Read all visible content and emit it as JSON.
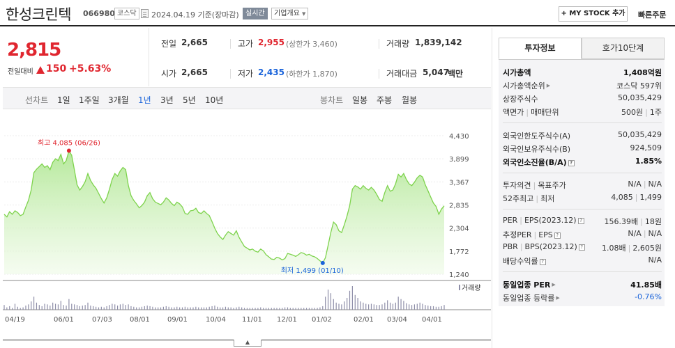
{
  "header": {
    "company_name": "한성크린텍",
    "code": "066980",
    "market_badge": "코스닥",
    "date_text": "2024.04.19 기준(장마감)",
    "live_badge": "실시간",
    "overview_label": "기업개요",
    "mystock_label": "+ MY STOCK 추가",
    "quick_order_label": "빠른주문"
  },
  "price": {
    "current": "2,815",
    "change_label": "전일대비",
    "change_value": "150",
    "change_pct": "+5.63%",
    "direction_color": "#e0262f"
  },
  "stats": {
    "prev_label": "전일",
    "prev_value": "2,665",
    "high_label": "고가",
    "high_value": "2,955",
    "upper_limit": "(상한가 3,460)",
    "volume_label": "거래량",
    "volume_value": "1,839,142",
    "open_label": "시가",
    "open_value": "2,665",
    "low_label": "저가",
    "low_value": "2,435",
    "lower_limit": "(하한가 1,870)",
    "amount_label": "거래대금",
    "amount_value": "5,047",
    "amount_unit": "백만"
  },
  "tabs": {
    "line_label": "선차트",
    "periods": [
      "1일",
      "1주일",
      "3개월",
      "1년",
      "3년",
      "5년",
      "10년"
    ],
    "active_period": "1년",
    "candle_label": "봉차트",
    "candle_periods": [
      "일봉",
      "주봉",
      "월봉"
    ]
  },
  "chart_data": {
    "type": "area",
    "color": "#7ed34d",
    "y_ticks": [
      "4,430",
      "3,899",
      "3,367",
      "2,835",
      "2,304",
      "1,772",
      "1,240"
    ],
    "ylim": [
      1240,
      4430
    ],
    "x_ticks": [
      "04/19",
      "06/01",
      "07/03",
      "08/01",
      "09/01",
      "10/04",
      "11/01",
      "12/01",
      "01/02",
      "02/01",
      "03/04",
      "04/01"
    ],
    "high_annotation": "최고 4,085 (06/26)",
    "low_annotation": "최저 1,499 (01/10)",
    "high": 4085,
    "low": 1499,
    "volume_label": "거래량",
    "series": [
      {
        "values": [
          2620,
          2560,
          2680,
          2620,
          2700,
          2660,
          2590,
          2620,
          2790,
          2940,
          3180,
          3580,
          3660,
          3720,
          3780,
          3700,
          3740,
          3650,
          3820,
          3900,
          3860,
          4000,
          3780,
          3860,
          4085,
          3980,
          3640,
          3300,
          3180,
          3260,
          3370,
          3560,
          3400,
          3300,
          3220,
          3100,
          2980,
          2880,
          3000,
          3200,
          3420,
          3560,
          3500,
          3620,
          3700,
          3650,
          3280,
          3050,
          2940,
          2860,
          2770,
          2820,
          2900,
          3050,
          3120,
          2980,
          2900,
          2870,
          2840,
          2900,
          3000,
          2950,
          2870,
          2820,
          2900,
          2860,
          2790,
          2640,
          2620,
          2700,
          2710,
          2760,
          2660,
          2640,
          2700,
          2640,
          2590,
          2450,
          2300,
          2180,
          2100,
          2040,
          2140,
          2220,
          2180,
          2140,
          2240,
          2090,
          1980,
          1880,
          1840,
          1800,
          1820,
          1770,
          1750,
          1820,
          1780,
          1690,
          1640,
          1590,
          1580,
          1630,
          1610,
          1570,
          1600,
          1720,
          1700,
          1680,
          1650,
          1690,
          1740,
          1720,
          1680,
          1700,
          1660,
          1640,
          1600,
          1550,
          1499,
          1620,
          1900,
          2200,
          2440,
          2380,
          2240,
          2200,
          2380,
          2580,
          2820,
          3200,
          3280,
          3250,
          3200,
          3280,
          3220,
          3180,
          3240,
          3180,
          3080,
          2960,
          2920,
          3120,
          3280,
          3150,
          3180,
          3320,
          3540,
          3480,
          3560,
          3420,
          3320,
          3280,
          3360,
          3460,
          3520,
          3480,
          3300,
          3160,
          3020,
          2880,
          2800,
          2620,
          2740,
          2815
        ]
      },
      {
        "values": [
          8,
          4,
          6,
          3,
          10,
          5,
          3,
          4,
          7,
          9,
          14,
          22,
          12,
          8,
          6,
          10,
          9,
          7,
          12,
          10,
          9,
          15,
          8,
          7,
          18,
          10,
          9,
          8,
          6,
          7,
          8,
          12,
          7,
          6,
          5,
          4,
          5,
          4,
          6,
          8,
          10,
          9,
          7,
          9,
          10,
          8,
          9,
          6,
          5,
          4,
          4,
          5,
          6,
          7,
          6,
          5,
          4,
          4,
          4,
          5,
          6,
          5,
          4,
          4,
          5,
          4,
          4,
          5,
          4,
          4,
          4,
          5,
          4,
          4,
          4,
          4,
          5,
          6,
          7,
          5,
          4,
          4,
          5,
          4,
          4,
          3,
          4,
          5,
          4,
          3,
          3,
          3,
          3,
          3,
          3,
          4,
          3,
          3,
          3,
          3,
          3,
          3,
          3,
          3,
          4,
          4,
          3,
          3,
          3,
          3,
          3,
          3,
          3,
          3,
          3,
          3,
          3,
          4,
          6,
          22,
          34,
          28,
          18,
          12,
          10,
          9,
          14,
          20,
          32,
          40,
          25,
          20,
          14,
          12,
          10,
          9,
          10,
          9,
          8,
          8,
          9,
          12,
          16,
          12,
          10,
          12,
          22,
          18,
          15,
          11,
          9,
          8,
          9,
          10,
          12,
          10,
          8,
          7,
          6,
          6,
          5,
          5,
          6,
          8
        ]
      }
    ]
  },
  "right_panel": {
    "tab_invest": "투자정보",
    "tab_orderbook": "호가10단계",
    "market_cap_label": "시가총액",
    "market_cap_value": "1,408억원",
    "cap_rank_label": "시가총액순위",
    "cap_rank_value": "코스닥 597위",
    "shares_label": "상장주식수",
    "shares_value": "50,035,429",
    "par_label": "액면가",
    "unit_label": "매매단위",
    "par_value": "500원",
    "unit_value": "1주",
    "foreign_limit_label": "외국인한도주식수(A)",
    "foreign_limit_value": "50,035,429",
    "foreign_hold_label": "외국인보유주식수(B)",
    "foreign_hold_value": "924,509",
    "foreign_ratio_label": "외국인소진율(B/A)",
    "foreign_ratio_value": "1.85%",
    "opinion_label": "투자의견",
    "target_label": "목표주가",
    "opinion_value": "N/A",
    "target_value": "N/A",
    "w52_label": "52주최고",
    "w52_low_label": "최저",
    "w52_high_value": "4,085",
    "w52_low_value": "1,499",
    "per_label": "PER",
    "eps_label": "EPS(2023.12)",
    "per_value": "156.39배",
    "eps_value": "18원",
    "est_per_label": "추정PER",
    "est_eps_label": "EPS",
    "est_per_value": "N/A",
    "est_eps_value": "N/A",
    "pbr_label": "PBR",
    "bps_label": "BPS(2023.12)",
    "pbr_value": "1.08배",
    "bps_value": "2,605원",
    "div_label": "배당수익률",
    "div_value": "N/A",
    "sector_per_label": "동일업종 PER",
    "sector_per_value": "41.85배",
    "sector_chg_label": "동일업종 등락률",
    "sector_chg_value": "-0.76%"
  }
}
